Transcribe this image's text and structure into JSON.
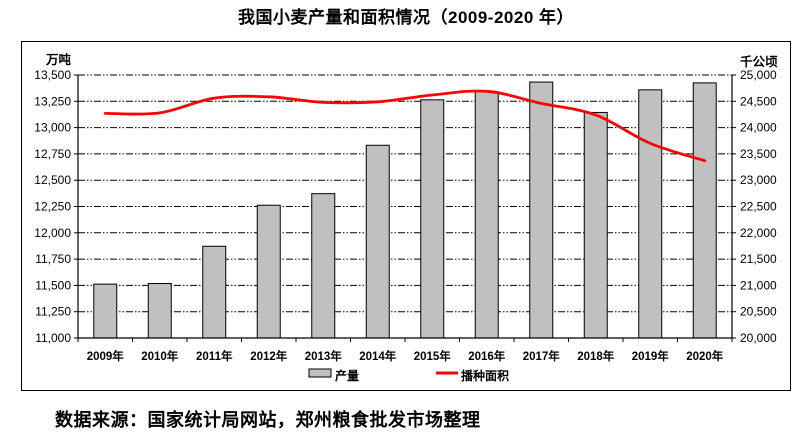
{
  "title": "我国小麦产量和面积情况（2009-2020 年）",
  "source_note": "数据来源：国家统计局网站，郑州粮食批发市场整理",
  "colors": {
    "bar_fill": "#c0c0c0",
    "bar_border": "#000000",
    "line": "#ff0000",
    "axis": "#000000",
    "background": "#ffffff"
  },
  "chart_data": {
    "type": "bar+line",
    "categories": [
      "2009年",
      "2010年",
      "2011年",
      "2012年",
      "2013年",
      "2014年",
      "2015年",
      "2016年",
      "2017年",
      "2018年",
      "2019年",
      "2020年"
    ],
    "series": [
      {
        "name": "产量",
        "kind": "bar",
        "axis": "left",
        "color": "#c0c0c0",
        "values": [
          11512,
          11518,
          11872,
          12262,
          12372,
          12832,
          13264,
          13341,
          13433,
          13144,
          13359,
          13425
        ]
      },
      {
        "name": "播种面积",
        "kind": "line",
        "axis": "right",
        "color": "#ff0000",
        "smooth": true,
        "values": [
          24270,
          24280,
          24560,
          24585,
          24480,
          24490,
          24620,
          24690,
          24460,
          24240,
          23700,
          23370
        ]
      }
    ],
    "left_axis": {
      "title": "万吨",
      "min": 11000,
      "max": 13500,
      "step": 250,
      "tick_labels": [
        "13,500",
        "13,250",
        "13,000",
        "12,750",
        "12,500",
        "12,250",
        "12,000",
        "11,750",
        "11,500",
        "11,250",
        "11,000"
      ]
    },
    "right_axis": {
      "title": "千公顷",
      "min": 20000,
      "max": 25000,
      "step": 500,
      "tick_labels": [
        "25,000",
        "24,500",
        "24,000",
        "23,500",
        "23,000",
        "22,500",
        "22,000",
        "21,500",
        "21,000",
        "20,500",
        "20,000"
      ]
    },
    "legend": [
      {
        "label": "产量",
        "swatch": "bar"
      },
      {
        "label": "播种面积",
        "swatch": "line"
      }
    ],
    "legend_position": "bottom",
    "grid": "horizontal dash-dot"
  }
}
